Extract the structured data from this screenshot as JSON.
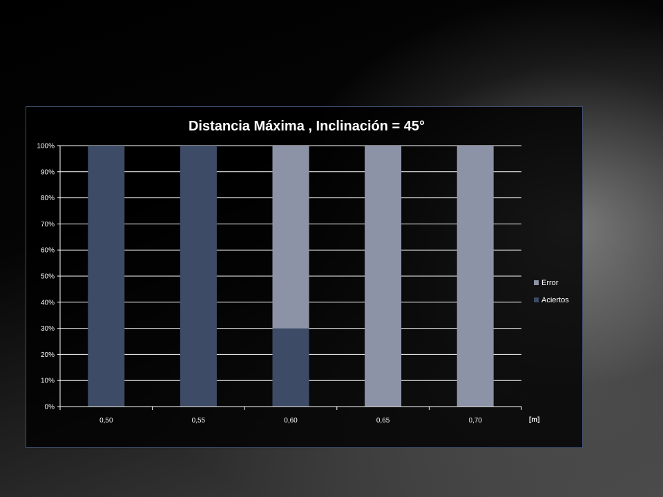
{
  "chart_data": {
    "type": "bar",
    "stacked": true,
    "title": "Distancia Máxima , Inclinación = 45°",
    "categories": [
      "0,50",
      "0,55",
      "0,60",
      "0,65",
      "0,70"
    ],
    "x_unit": "[m]",
    "series": [
      {
        "name": "Aciertos",
        "values": [
          100,
          100,
          30,
          0,
          0
        ],
        "color": "#3d4b66"
      },
      {
        "name": "Error",
        "values": [
          0,
          0,
          70,
          100,
          100
        ],
        "color": "#8d93a6"
      }
    ],
    "ylim": [
      0,
      100
    ],
    "yticks": [
      "0%",
      "10%",
      "20%",
      "30%",
      "40%",
      "50%",
      "60%",
      "70%",
      "80%",
      "90%",
      "100%"
    ],
    "grid": true,
    "legend_position": "right",
    "legend_order": [
      "Error",
      "Aciertos"
    ]
  }
}
